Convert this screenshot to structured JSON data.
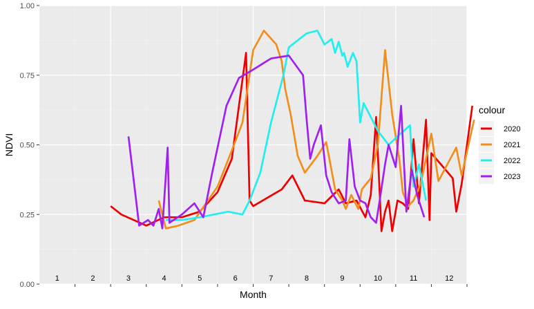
{
  "chart_data": {
    "type": "line",
    "xlabel": "Month",
    "ylabel": "NDVI",
    "xlim": [
      0.5,
      12.5
    ],
    "ylim": [
      0,
      1
    ],
    "month_labels": [
      "1",
      "2",
      "3",
      "4",
      "5",
      "6",
      "7",
      "8",
      "9",
      "10",
      "11",
      "12"
    ],
    "y_ticks": [
      0,
      0.25,
      0.5,
      0.75,
      1
    ],
    "y_tick_labels": [
      "0.00",
      "0.25",
      "0.50",
      "0.75",
      "1.00"
    ],
    "grid": true,
    "background": "#EBEBEB",
    "legend": {
      "title": "colour",
      "position": "right"
    },
    "series": [
      {
        "name": "2020",
        "color": "#EE0000",
        "points": [
          [
            2.5,
            0.28
          ],
          [
            2.8,
            0.25
          ],
          [
            3.5,
            0.21
          ],
          [
            4.0,
            0.24
          ],
          [
            4.5,
            0.24
          ],
          [
            5.0,
            0.26
          ],
          [
            5.5,
            0.33
          ],
          [
            5.9,
            0.45
          ],
          [
            6.3,
            0.83
          ],
          [
            6.4,
            0.3
          ],
          [
            6.5,
            0.28
          ],
          [
            6.9,
            0.31
          ],
          [
            7.3,
            0.34
          ],
          [
            7.6,
            0.39
          ],
          [
            7.95,
            0.3
          ],
          [
            8.5,
            0.29
          ],
          [
            8.9,
            0.34
          ],
          [
            9.1,
            0.29
          ],
          [
            9.4,
            0.3
          ],
          [
            9.65,
            0.24
          ],
          [
            9.8,
            0.32
          ],
          [
            9.95,
            0.6
          ],
          [
            10.1,
            0.19
          ],
          [
            10.2,
            0.26
          ],
          [
            10.3,
            0.3
          ],
          [
            10.4,
            0.19
          ],
          [
            10.55,
            0.3
          ],
          [
            10.7,
            0.29
          ],
          [
            10.85,
            0.27
          ],
          [
            11.0,
            0.52
          ],
          [
            11.15,
            0.29
          ],
          [
            11.35,
            0.59
          ],
          [
            11.45,
            0.23
          ],
          [
            11.5,
            0.47
          ],
          [
            12.1,
            0.38
          ],
          [
            12.2,
            0.26
          ],
          [
            12.35,
            0.36
          ],
          [
            12.65,
            0.64
          ]
        ]
      },
      {
        "name": "2021",
        "color": "#F28E1C",
        "points": [
          [
            3.85,
            0.3
          ],
          [
            4.05,
            0.2
          ],
          [
            4.4,
            0.21
          ],
          [
            4.85,
            0.23
          ],
          [
            5.5,
            0.35
          ],
          [
            5.9,
            0.48
          ],
          [
            6.2,
            0.58
          ],
          [
            6.5,
            0.84
          ],
          [
            6.8,
            0.91
          ],
          [
            7.15,
            0.86
          ],
          [
            7.3,
            0.8
          ],
          [
            7.4,
            0.7
          ],
          [
            7.55,
            0.61
          ],
          [
            7.75,
            0.46
          ],
          [
            7.95,
            0.4
          ],
          [
            8.3,
            0.46
          ],
          [
            8.55,
            0.51
          ],
          [
            8.8,
            0.34
          ],
          [
            9.0,
            0.3
          ],
          [
            9.1,
            0.27
          ],
          [
            9.25,
            0.32
          ],
          [
            9.45,
            0.27
          ],
          [
            9.55,
            0.34
          ],
          [
            9.8,
            0.38
          ],
          [
            10.0,
            0.5
          ],
          [
            10.2,
            0.84
          ],
          [
            10.4,
            0.61
          ],
          [
            10.6,
            0.45
          ],
          [
            10.7,
            0.33
          ],
          [
            10.85,
            0.28
          ],
          [
            11.0,
            0.3
          ],
          [
            11.2,
            0.36
          ],
          [
            11.35,
            0.45
          ],
          [
            11.5,
            0.54
          ],
          [
            11.7,
            0.37
          ],
          [
            12.2,
            0.49
          ],
          [
            12.35,
            0.39
          ],
          [
            12.7,
            0.59
          ]
        ]
      },
      {
        "name": "2022",
        "color": "#22EEEE",
        "points": [
          [
            4.05,
            0.23
          ],
          [
            4.5,
            0.23
          ],
          [
            5.0,
            0.24
          ],
          [
            5.8,
            0.26
          ],
          [
            6.2,
            0.25
          ],
          [
            6.4,
            0.3
          ],
          [
            6.7,
            0.4
          ],
          [
            7.0,
            0.58
          ],
          [
            7.35,
            0.75
          ],
          [
            7.5,
            0.85
          ],
          [
            8.0,
            0.9
          ],
          [
            8.3,
            0.91
          ],
          [
            8.5,
            0.86
          ],
          [
            8.6,
            0.87
          ],
          [
            8.7,
            0.88
          ],
          [
            8.8,
            0.83
          ],
          [
            8.9,
            0.87
          ],
          [
            9.0,
            0.82
          ],
          [
            9.05,
            0.83
          ],
          [
            9.15,
            0.78
          ],
          [
            9.3,
            0.83
          ],
          [
            9.4,
            0.8
          ],
          [
            9.5,
            0.58
          ],
          [
            9.6,
            0.65
          ],
          [
            9.8,
            0.6
          ],
          [
            10.0,
            0.55
          ],
          [
            10.3,
            0.5
          ],
          [
            10.55,
            0.53
          ],
          [
            10.9,
            0.57
          ],
          [
            11.0,
            0.35
          ],
          [
            11.15,
            0.43
          ],
          [
            11.35,
            0.3
          ]
        ]
      },
      {
        "name": "2023",
        "color": "#A020F0",
        "points": [
          [
            3.0,
            0.53
          ],
          [
            3.3,
            0.21
          ],
          [
            3.55,
            0.23
          ],
          [
            3.7,
            0.21
          ],
          [
            3.85,
            0.27
          ],
          [
            3.95,
            0.2
          ],
          [
            4.1,
            0.49
          ],
          [
            4.15,
            0.22
          ],
          [
            4.5,
            0.25
          ],
          [
            4.85,
            0.29
          ],
          [
            5.1,
            0.24
          ],
          [
            5.35,
            0.4
          ],
          [
            5.75,
            0.64
          ],
          [
            6.1,
            0.74
          ],
          [
            6.5,
            0.77
          ],
          [
            7.0,
            0.81
          ],
          [
            7.5,
            0.82
          ],
          [
            7.9,
            0.75
          ],
          [
            8.0,
            0.59
          ],
          [
            8.1,
            0.45
          ],
          [
            8.2,
            0.5
          ],
          [
            8.4,
            0.57
          ],
          [
            8.55,
            0.39
          ],
          [
            8.7,
            0.33
          ],
          [
            8.9,
            0.29
          ],
          [
            9.1,
            0.3
          ],
          [
            9.2,
            0.52
          ],
          [
            9.35,
            0.35
          ],
          [
            9.5,
            0.3
          ],
          [
            9.65,
            0.29
          ],
          [
            9.8,
            0.24
          ],
          [
            9.95,
            0.22
          ],
          [
            10.05,
            0.3
          ],
          [
            10.2,
            0.43
          ],
          [
            10.3,
            0.5
          ],
          [
            10.5,
            0.42
          ],
          [
            10.65,
            0.64
          ],
          [
            10.8,
            0.26
          ],
          [
            10.95,
            0.41
          ],
          [
            11.1,
            0.32
          ],
          [
            11.3,
            0.24
          ]
        ]
      }
    ]
  }
}
